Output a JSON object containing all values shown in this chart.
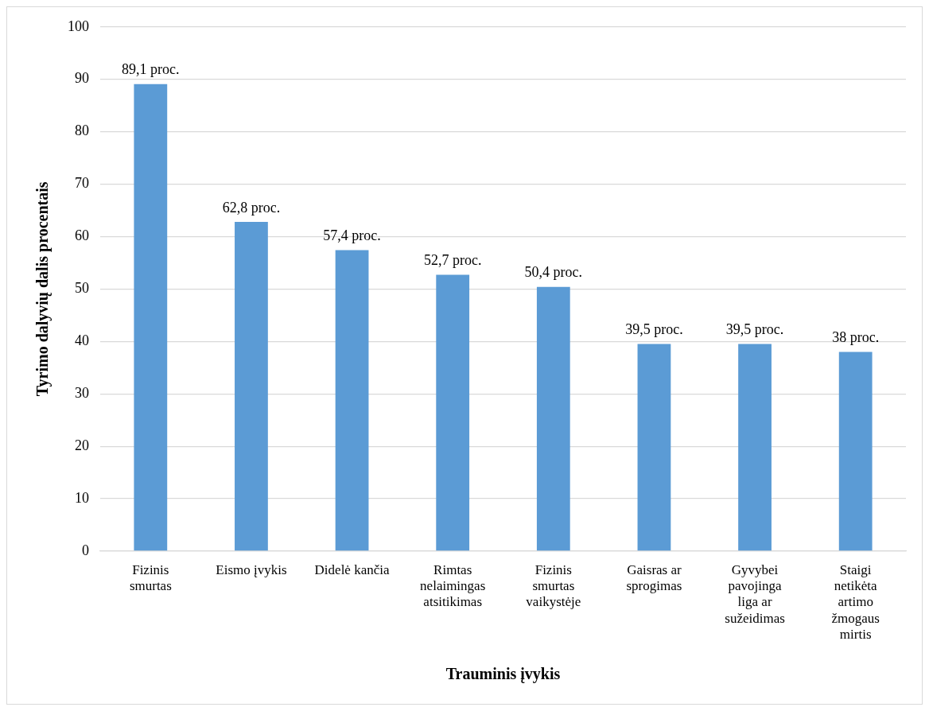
{
  "chart_data": {
    "type": "bar",
    "xlabel": "Trauminis įvykis",
    "ylabel": "Tyrimo dalyvių dalis procentais",
    "categories": [
      "Fizinis smurtas",
      "Eismo įvykis",
      "Didelė kančia",
      "Rimtas nelaimingas atsitikimas",
      "Fizinis smurtas vaikystėje",
      "Gaisras ar sprogimas",
      "Gyvybei pavojinga liga ar sužeidimas",
      "Staigi netikėta artimo žmogaus mirtis"
    ],
    "values": [
      89.1,
      62.8,
      57.4,
      52.7,
      50.4,
      39.5,
      39.5,
      38
    ],
    "value_labels": [
      "89,1 proc.",
      "62,8 proc.",
      "57,4 proc.",
      "52,7 proc.",
      "50,4 proc.",
      "39,5 proc.",
      "39,5 proc.",
      "38 proc."
    ],
    "color": "#5b9bd5",
    "ylim": [
      0,
      100
    ],
    "yticks": [
      0,
      10,
      20,
      30,
      40,
      50,
      60,
      70,
      80,
      90,
      100
    ],
    "grid": "y",
    "legend": false
  }
}
